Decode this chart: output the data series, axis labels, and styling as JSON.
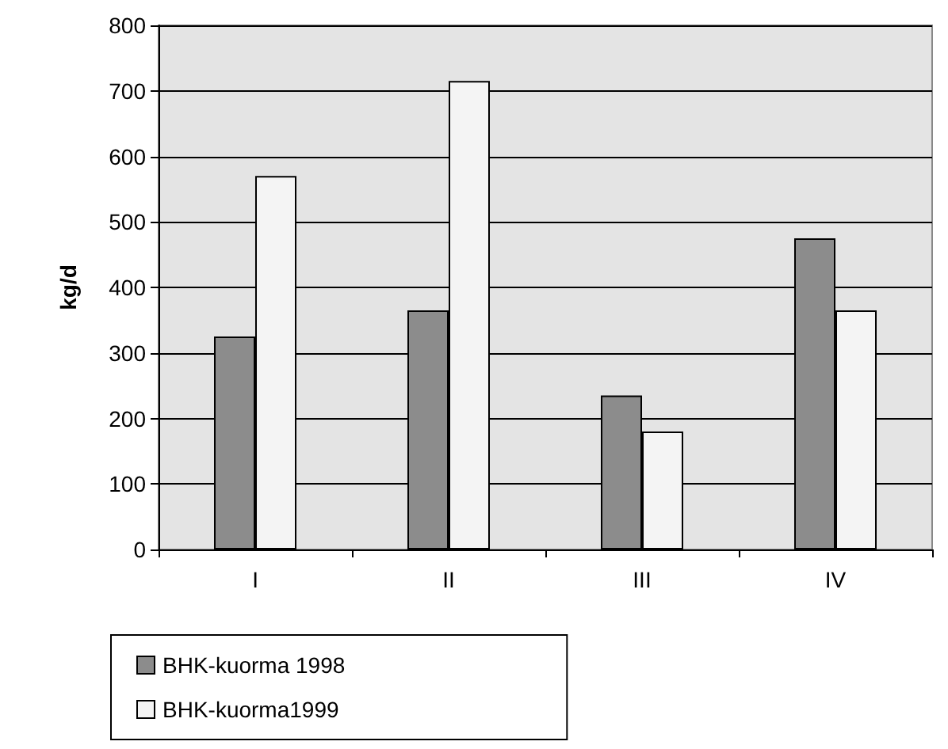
{
  "chart_data": {
    "type": "bar",
    "ylabel": "kg/d",
    "categories": [
      "I",
      "II",
      "III",
      "IV"
    ],
    "series": [
      {
        "name": "BHK-kuorma 1998",
        "color": "#8c8c8c",
        "values": [
          325,
          365,
          235,
          475
        ]
      },
      {
        "name": "BHK-kuorma1999",
        "color": "#f4f4f4",
        "values": [
          570,
          715,
          180,
          365
        ]
      }
    ],
    "ylim": [
      0,
      800
    ],
    "yticks": [
      0,
      100,
      200,
      300,
      400,
      500,
      600,
      700,
      800
    ],
    "grid": "y",
    "legend": "bottom"
  }
}
